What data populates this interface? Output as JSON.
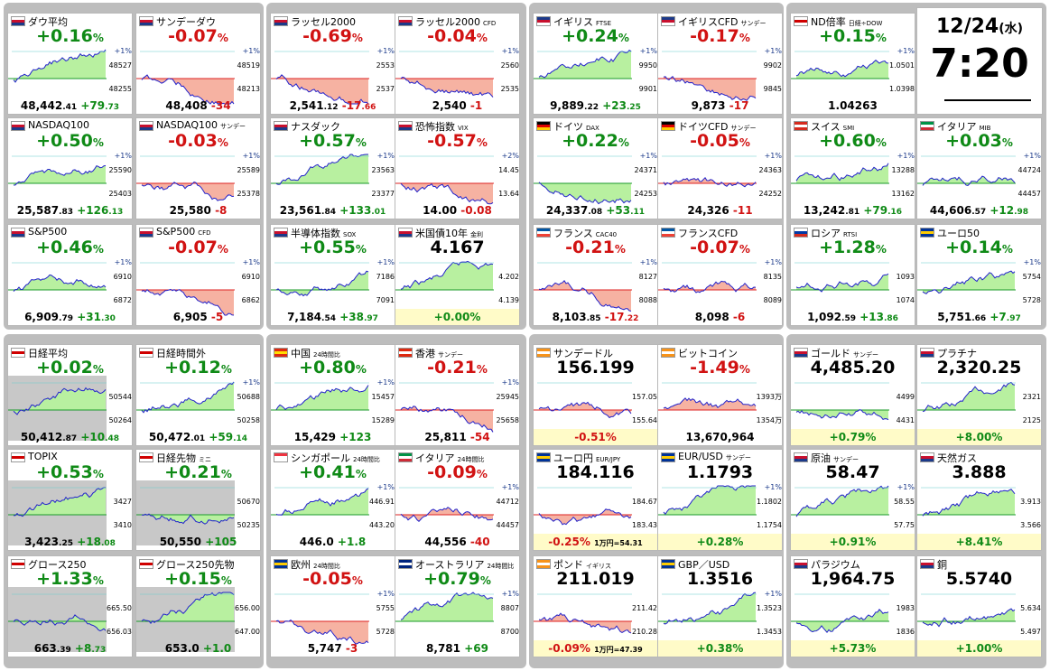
{
  "clock": {
    "date_main": "12/24",
    "date_day": "(水)",
    "time": "7:20"
  },
  "colors": {
    "up": "#0f8a16",
    "down": "#d11212",
    "group_bg": "#bdbdbd",
    "panel_gray": "#c8c8c8"
  },
  "cards": [
    {
      "name": "ダウ平均",
      "sub": "",
      "flag": "us",
      "change": "+0.16",
      "dir": "up",
      "price": "48,442",
      "price_dec": ".41",
      "diff": "+79",
      "diff_dec": ".73",
      "axis_hi": "48527",
      "axis_lo": "48255",
      "axis_top": "+1%"
    },
    {
      "name": "サンデーダウ",
      "sub": "",
      "flag": "us",
      "change": "-0.07",
      "dir": "dn",
      "price": "48,408",
      "price_dec": "",
      "diff": "-34",
      "diff_dec": "",
      "axis_hi": "48519",
      "axis_lo": "48213",
      "axis_top": "+1%"
    },
    {
      "name": "ラッセル2000",
      "sub": "",
      "flag": "us",
      "change": "-0.69",
      "dir": "dn",
      "price": "2,541",
      "price_dec": ".12",
      "diff": "-17",
      "diff_dec": ".66",
      "axis_hi": "2553",
      "axis_lo": "2537",
      "axis_top": "+1%"
    },
    {
      "name": "ラッセル2000",
      "sub": "CFD",
      "flag": "us",
      "change": "-0.04",
      "dir": "dn",
      "price": "2,540",
      "price_dec": "",
      "diff": "-1",
      "diff_dec": "",
      "axis_hi": "2560",
      "axis_lo": "2535",
      "axis_top": "+1%"
    },
    {
      "name": "イギリス",
      "sub": "FTSE",
      "flag": "uk",
      "change": "+0.24",
      "dir": "up",
      "price": "9,889",
      "price_dec": ".22",
      "diff": "+23",
      "diff_dec": ".25",
      "axis_hi": "9950",
      "axis_lo": "9901",
      "axis_top": "+1%"
    },
    {
      "name": "イギリスCFD",
      "sub": "サンデー",
      "flag": "uk",
      "change": "-0.17",
      "dir": "dn",
      "price": "9,873",
      "price_dec": "",
      "diff": "-17",
      "diff_dec": "",
      "axis_hi": "9902",
      "axis_lo": "9845",
      "axis_top": "+1%"
    },
    {
      "name": "ND倍率",
      "sub": "日経÷DOW",
      "flag": "jp",
      "change": "+0.15",
      "dir": "up",
      "price": "1.04263",
      "price_dec": "",
      "diff": "",
      "diff_dec": "",
      "axis_hi": "1.0501",
      "axis_lo": "1.0398",
      "axis_top": "+1%"
    },
    {
      "name": "NASDAQ100",
      "sub": "",
      "flag": "us",
      "change": "+0.50",
      "dir": "up",
      "price": "25,587",
      "price_dec": ".83",
      "diff": "+126",
      "diff_dec": ".13",
      "axis_hi": "25590",
      "axis_lo": "25403",
      "axis_top": "+1%"
    },
    {
      "name": "NASDAQ100",
      "sub": "サンデー",
      "flag": "us",
      "change": "-0.03",
      "dir": "dn",
      "price": "25,580",
      "price_dec": "",
      "diff": "-8",
      "diff_dec": "",
      "axis_hi": "25589",
      "axis_lo": "25378",
      "axis_top": "+1%"
    },
    {
      "name": "ナスダック",
      "sub": "",
      "flag": "us",
      "change": "+0.57",
      "dir": "up",
      "price": "23,561",
      "price_dec": ".84",
      "diff": "+133",
      "diff_dec": ".01",
      "axis_hi": "23563",
      "axis_lo": "23377",
      "axis_top": "+1%"
    },
    {
      "name": "恐怖指数",
      "sub": "VIX",
      "flag": "us",
      "change": "-0.57",
      "dir": "dn",
      "price": "14.00",
      "price_dec": "",
      "diff": "-0.08",
      "diff_dec": "",
      "axis_hi": "14.45",
      "axis_lo": "13.64",
      "axis_top": "+2%"
    },
    {
      "name": "ドイツ",
      "sub": "DAX",
      "flag": "de",
      "change": "+0.22",
      "dir": "up",
      "price": "24,337",
      "price_dec": ".08",
      "diff": "+53",
      "diff_dec": ".11",
      "axis_hi": "24371",
      "axis_lo": "24253",
      "axis_top": "+1%"
    },
    {
      "name": "ドイツCFD",
      "sub": "サンデー",
      "flag": "de",
      "change": "-0.05",
      "dir": "dn",
      "price": "24,326",
      "price_dec": "",
      "diff": "-11",
      "diff_dec": "",
      "axis_hi": "24363",
      "axis_lo": "24252",
      "axis_top": "+1%"
    },
    {
      "name": "スイス",
      "sub": "SMI",
      "flag": "ch",
      "change": "+0.60",
      "dir": "up",
      "price": "13,242",
      "price_dec": ".81",
      "diff": "+79",
      "diff_dec": ".16",
      "axis_hi": "13288",
      "axis_lo": "13162",
      "axis_top": "+1%"
    },
    {
      "name": "イタリア",
      "sub": "MIB",
      "flag": "it",
      "change": "+0.03",
      "dir": "up",
      "price": "44,606",
      "price_dec": ".57",
      "diff": "+12",
      "diff_dec": ".98",
      "axis_hi": "44724",
      "axis_lo": "44457",
      "axis_top": "+1%"
    },
    {
      "name": "S&P500",
      "sub": "",
      "flag": "us",
      "change": "+0.46",
      "dir": "up",
      "price": "6,909",
      "price_dec": ".79",
      "diff": "+31",
      "diff_dec": ".30",
      "axis_hi": "6910",
      "axis_lo": "6872",
      "axis_top": "+1%"
    },
    {
      "name": "S&P500",
      "sub": "CFD",
      "flag": "us",
      "change": "-0.07",
      "dir": "dn",
      "price": "6,905",
      "price_dec": "",
      "diff": "-5",
      "diff_dec": "",
      "axis_hi": "6910",
      "axis_lo": "6862",
      "axis_top": "+1%"
    },
    {
      "name": "半導体指数",
      "sub": "SOX",
      "flag": "us",
      "change": "+0.55",
      "dir": "up",
      "price": "7,184",
      "price_dec": ".54",
      "diff": "+38",
      "diff_dec": ".97",
      "axis_hi": "7186",
      "axis_lo": "7091",
      "axis_top": "+1%"
    },
    {
      "name": "米国債10年",
      "sub": "金利",
      "flag": "us",
      "change": "4.167",
      "dir": "neu",
      "price": "+0.00%",
      "price_dec": "",
      "diff": "",
      "diff_dec": "",
      "axis_hi": "4.202",
      "axis_lo": "4.139",
      "axis_top": ""
    },
    {
      "name": "フランス",
      "sub": "CAC40",
      "flag": "fr",
      "change": "-0.21",
      "dir": "dn",
      "price": "8,103",
      "price_dec": ".85",
      "diff": "-17",
      "diff_dec": ".22",
      "axis_hi": "8127",
      "axis_lo": "8088",
      "axis_top": "+1%"
    },
    {
      "name": "フランスCFD",
      "sub": "",
      "flag": "fr",
      "change": "-0.07",
      "dir": "dn",
      "price": "8,098",
      "price_dec": "",
      "diff": "-6",
      "diff_dec": "",
      "axis_hi": "8135",
      "axis_lo": "8089",
      "axis_top": "+1%"
    },
    {
      "name": "ロシア",
      "sub": "RTSI",
      "flag": "ru",
      "change": "+1.28",
      "dir": "up",
      "price": "1,092",
      "price_dec": ".59",
      "diff": "+13",
      "diff_dec": ".86",
      "axis_hi": "1093",
      "axis_lo": "1074",
      "axis_top": ""
    },
    {
      "name": "ユーロ50",
      "sub": "",
      "flag": "eu",
      "change": "+0.14",
      "dir": "up",
      "price": "5,751",
      "price_dec": ".66",
      "diff": "+7",
      "diff_dec": ".97",
      "axis_hi": "5754",
      "axis_lo": "5728",
      "axis_top": "+1%"
    },
    {
      "name": "日経平均",
      "sub": "",
      "flag": "jp",
      "change": "+0.02",
      "dir": "up",
      "price": "50,412",
      "price_dec": ".87",
      "diff": "+10",
      "diff_dec": ".48",
      "axis_hi": "50544",
      "axis_lo": "50264",
      "axis_top": ""
    },
    {
      "name": "日経時間外",
      "sub": "",
      "flag": "jp",
      "change": "+0.12",
      "dir": "up",
      "price": "50,472",
      "price_dec": ".01",
      "diff": "+59",
      "diff_dec": ".14",
      "axis_hi": "50688",
      "axis_lo": "50258",
      "axis_top": "+1%"
    },
    {
      "name": "中国",
      "sub": "24時間比",
      "flag": "cn",
      "change": "+0.80",
      "dir": "up",
      "price": "15,429",
      "price_dec": "",
      "diff": "+123",
      "diff_dec": "",
      "axis_hi": "15457",
      "axis_lo": "15289",
      "axis_top": "+1%"
    },
    {
      "name": "香港",
      "sub": "サンデー",
      "flag": "hk",
      "change": "-0.21",
      "dir": "dn",
      "price": "25,811",
      "price_dec": "",
      "diff": "-54",
      "diff_dec": "",
      "axis_hi": "25945",
      "axis_lo": "25658",
      "axis_top": "+1%"
    },
    {
      "name": "サンデードル",
      "sub": "",
      "flag": "btc",
      "change": "156.199",
      "dir": "neu",
      "price": "-0.51%",
      "price_dec": "",
      "diff": "",
      "diff_dec": "",
      "axis_hi": "157.05",
      "axis_lo": "155.64",
      "axis_top": ""
    },
    {
      "name": "ビットコイン",
      "sub": "",
      "flag": "btc",
      "change": "-1.49",
      "dir": "dn",
      "price": "13,670,964",
      "price_dec": "",
      "diff": "",
      "diff_dec": "",
      "axis_hi": "1393万",
      "axis_lo": "1354万",
      "axis_top": ""
    },
    {
      "name": "ゴールド",
      "sub": "サンデー",
      "flag": "us",
      "change": "4,485.20",
      "dir": "neu",
      "price": "+0.79%",
      "price_dec": "",
      "diff": "",
      "diff_dec": "",
      "axis_hi": "4499",
      "axis_lo": "4431",
      "axis_top": ""
    },
    {
      "name": "プラチナ",
      "sub": "",
      "flag": "us",
      "change": "2,320.25",
      "dir": "neu",
      "price": "+8.00%",
      "price_dec": "",
      "diff": "",
      "diff_dec": "",
      "axis_hi": "2321",
      "axis_lo": "2125",
      "axis_top": ""
    },
    {
      "name": "TOPIX",
      "sub": "",
      "flag": "jp",
      "change": "+0.53",
      "dir": "up",
      "price": "3,423",
      "price_dec": ".25",
      "diff": "+18",
      "diff_dec": ".08",
      "axis_hi": "3427",
      "axis_lo": "3410",
      "axis_top": ""
    },
    {
      "name": "日経先物",
      "sub": "ミニ",
      "flag": "jp",
      "change": "+0.21",
      "dir": "up",
      "price": "50,550",
      "price_dec": "",
      "diff": "+105",
      "diff_dec": "",
      "axis_hi": "50670",
      "axis_lo": "50235",
      "axis_top": ""
    },
    {
      "name": "シンガポール",
      "sub": "24時間比",
      "flag": "sg",
      "change": "+0.41",
      "dir": "up",
      "price": "446.0",
      "price_dec": "",
      "diff": "+1.8",
      "diff_dec": "",
      "axis_hi": "446.91",
      "axis_lo": "443.20",
      "axis_top": "+1%"
    },
    {
      "name": "イタリア",
      "sub": "24時間比",
      "flag": "it",
      "change": "-0.09",
      "dir": "dn",
      "price": "44,556",
      "price_dec": "",
      "diff": "-40",
      "diff_dec": "",
      "axis_hi": "44712",
      "axis_lo": "44457",
      "axis_top": "+1%"
    },
    {
      "name": "ユーロ円",
      "sub": "EUR/JPY",
      "flag": "eu",
      "change": "184.116",
      "dir": "neu",
      "price": "-0.25%",
      "price_dec": "",
      "diff": "1万円=54.31",
      "diff_dec": "",
      "axis_hi": "184.67",
      "axis_lo": "183.43",
      "axis_top": ""
    },
    {
      "name": "EUR/USD",
      "sub": "サンデー",
      "flag": "eu",
      "change": "1.1793",
      "dir": "neu",
      "price": "+0.28%",
      "price_dec": "",
      "diff": "",
      "diff_dec": "",
      "axis_hi": "1.1802",
      "axis_lo": "1.1754",
      "axis_top": "+1%"
    },
    {
      "name": "原油",
      "sub": "サンデー",
      "flag": "us",
      "change": "58.47",
      "dir": "neu",
      "price": "+0.91%",
      "price_dec": "",
      "diff": "",
      "diff_dec": "",
      "axis_hi": "58.55",
      "axis_lo": "57.75",
      "axis_top": "+1%"
    },
    {
      "name": "天然ガス",
      "sub": "",
      "flag": "us",
      "change": "3.888",
      "dir": "neu",
      "price": "+8.41%",
      "price_dec": "",
      "diff": "",
      "diff_dec": "",
      "axis_hi": "3.913",
      "axis_lo": "3.566",
      "axis_top": ""
    },
    {
      "name": "グロース250",
      "sub": "",
      "flag": "jp",
      "change": "+1.33",
      "dir": "up",
      "price": "663",
      "price_dec": ".39",
      "diff": "+8",
      "diff_dec": ".73",
      "axis_hi": "665.50",
      "axis_lo": "656.03",
      "axis_top": ""
    },
    {
      "name": "グロース250先物",
      "sub": "",
      "flag": "jp",
      "change": "+0.15",
      "dir": "up",
      "price": "653.0",
      "price_dec": "",
      "diff": "+1.0",
      "diff_dec": "",
      "axis_hi": "656.00",
      "axis_lo": "647.00",
      "axis_top": ""
    },
    {
      "name": "欧州",
      "sub": "24時間比",
      "flag": "eu",
      "change": "-0.05",
      "dir": "dn",
      "price": "5,747",
      "price_dec": "",
      "diff": "-3",
      "diff_dec": "",
      "axis_hi": "5755",
      "axis_lo": "5728",
      "axis_top": "+1%"
    },
    {
      "name": "オーストラリア",
      "sub": "24時間比",
      "flag": "au",
      "change": "+0.79",
      "dir": "up",
      "price": "8,781",
      "price_dec": "",
      "diff": "+69",
      "diff_dec": "",
      "axis_hi": "8807",
      "axis_lo": "8700",
      "axis_top": "+1%"
    },
    {
      "name": "ポンド",
      "sub": "イギリス",
      "flag": "btc",
      "change": "211.019",
      "dir": "neu",
      "price": "-0.09%",
      "price_dec": "",
      "diff": "1万円=47.39",
      "diff_dec": "",
      "axis_hi": "211.42",
      "axis_lo": "210.28",
      "axis_top": ""
    },
    {
      "name": "GBP／USD",
      "sub": "",
      "flag": "eu",
      "change": "1.3516",
      "dir": "neu",
      "price": "+0.38%",
      "price_dec": "",
      "diff": "",
      "diff_dec": "",
      "axis_hi": "1.3523",
      "axis_lo": "1.3453",
      "axis_top": "+1%"
    },
    {
      "name": "パラジウム",
      "sub": "",
      "flag": "us",
      "change": "1,964.75",
      "dir": "neu",
      "price": "+5.73%",
      "price_dec": "",
      "diff": "",
      "diff_dec": "",
      "axis_hi": "1983",
      "axis_lo": "1836",
      "axis_top": ""
    },
    {
      "name": "銅",
      "sub": "",
      "flag": "us",
      "change": "5.5740",
      "dir": "neu",
      "price": "+1.00%",
      "price_dec": "",
      "diff": "",
      "diff_dec": "",
      "axis_hi": "5.634",
      "axis_lo": "5.497",
      "axis_top": ""
    }
  ]
}
